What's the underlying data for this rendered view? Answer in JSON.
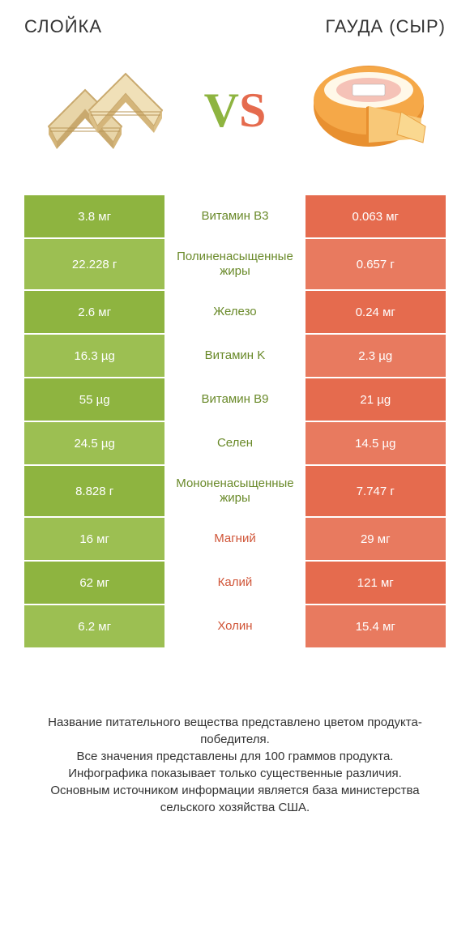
{
  "header": {
    "left": "СЛОЙКА",
    "right": "ГАУДА (СЫР)"
  },
  "vs": {
    "v": "V",
    "s": "S"
  },
  "colors": {
    "green": "#8eb440",
    "green_alt": "#9cbf52",
    "orange": "#e56b4e",
    "orange_alt": "#e87a5f",
    "mid_green": "#6a8a2a",
    "mid_orange": "#d05538"
  },
  "rows": [
    {
      "left": "3.8 мг",
      "mid": "Витамин B3",
      "right": "0.063 мг",
      "winner": "left",
      "tall": false
    },
    {
      "left": "22.228 г",
      "mid": "Полиненасыщенные жиры",
      "right": "0.657 г",
      "winner": "left",
      "tall": true
    },
    {
      "left": "2.6 мг",
      "mid": "Железо",
      "right": "0.24 мг",
      "winner": "left",
      "tall": false
    },
    {
      "left": "16.3 µg",
      "mid": "Витамин K",
      "right": "2.3 µg",
      "winner": "left",
      "tall": false
    },
    {
      "left": "55 µg",
      "mid": "Витамин B9",
      "right": "21 µg",
      "winner": "left",
      "tall": false
    },
    {
      "left": "24.5 µg",
      "mid": "Селен",
      "right": "14.5 µg",
      "winner": "left",
      "tall": false
    },
    {
      "left": "8.828 г",
      "mid": "Мононенасыщенные жиры",
      "right": "7.747 г",
      "winner": "left",
      "tall": true
    },
    {
      "left": "16 мг",
      "mid": "Магний",
      "right": "29 мг",
      "winner": "right",
      "tall": false
    },
    {
      "left": "62 мг",
      "mid": "Калий",
      "right": "121 мг",
      "winner": "right",
      "tall": false
    },
    {
      "left": "6.2 мг",
      "mid": "Холин",
      "right": "15.4 мг",
      "winner": "right",
      "tall": false
    }
  ],
  "footer": {
    "line1": "Название питательного вещества представлено цветом продукта-победителя.",
    "line2": "Все значения представлены для 100 граммов продукта.",
    "line3": "Инфографика показывает только существенные различия.",
    "line4": "Основным источником информации является база министерства сельского хозяйства США."
  }
}
